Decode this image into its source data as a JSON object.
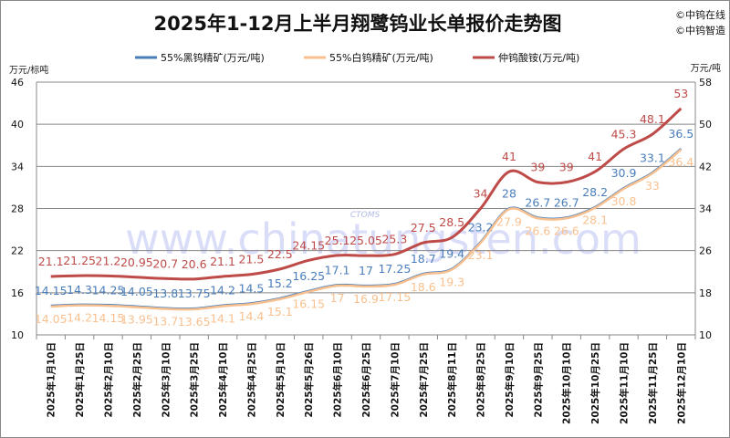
{
  "chart_data": {
    "type": "line",
    "title": "2025年1-12月上半月翔鹭钨业长单报价走势图",
    "copyright": [
      "©中钨在线",
      "©中钨智造"
    ],
    "watermark": "www.chinatungsten.com",
    "logo_text": "CTOMS",
    "ylabel_left": "万元/标吨",
    "ylabel_right": "万元/吨",
    "ylim_left": [
      10,
      46
    ],
    "yticks_left": [
      10,
      16,
      22,
      28,
      34,
      40,
      46
    ],
    "ylim_right": [
      10,
      58
    ],
    "yticks_right": [
      10,
      18,
      26,
      34,
      42,
      50,
      58
    ],
    "grid": "horizontal",
    "legend_position": "top",
    "categories": [
      "2025年1月10日",
      "2025年1月25日",
      "2025年2月10日",
      "2025年2月25日",
      "2025年3月10日",
      "2025年3月25日",
      "2025年4月10日",
      "2025年4月25日",
      "2025年5月10日",
      "2025年5月26日",
      "2025年6月10日",
      "2025年6月25日",
      "2025年7月10日",
      "2025年7月25日",
      "2025年8月11日",
      "2025年8月25日",
      "2025年9月10日",
      "2025年9月25日",
      "2025年10月10日",
      "2025年10月25日",
      "2025年11月10日",
      "2025年11月25日",
      "2025年12月10日"
    ],
    "series": [
      {
        "name": "55%黑钨精矿(万元/吨)",
        "axis": "left",
        "color": "#4a7ebb",
        "values": [
          14.15,
          14.3,
          14.25,
          14.05,
          13.8,
          13.75,
          14.2,
          14.5,
          15.2,
          16.25,
          17.1,
          17,
          17.25,
          18.7,
          19.4,
          23.2,
          28,
          26.7,
          26.7,
          28.2,
          30.9,
          33.1,
          36.5
        ]
      },
      {
        "name": "55%白钨精矿(万元/吨)",
        "axis": "left",
        "color": "#f9c08f",
        "values": [
          14.05,
          14.2,
          14.15,
          13.95,
          13.7,
          13.65,
          14.1,
          14.4,
          15.1,
          16.15,
          17,
          16.9,
          17.15,
          18.6,
          19.3,
          23.1,
          27.9,
          26.6,
          26.6,
          28.1,
          30.8,
          33,
          36.4
        ]
      },
      {
        "name": "仲钨酸铵(万元/吨)",
        "axis": "right",
        "color": "#be4b48",
        "values": [
          21.1,
          21.25,
          21.2,
          20.95,
          20.7,
          20.6,
          21.1,
          21.5,
          22.5,
          24.15,
          25.1,
          25.05,
          25.3,
          27.5,
          28.5,
          34,
          41,
          39,
          39,
          41,
          45.3,
          48.1,
          53
        ]
      }
    ]
  }
}
